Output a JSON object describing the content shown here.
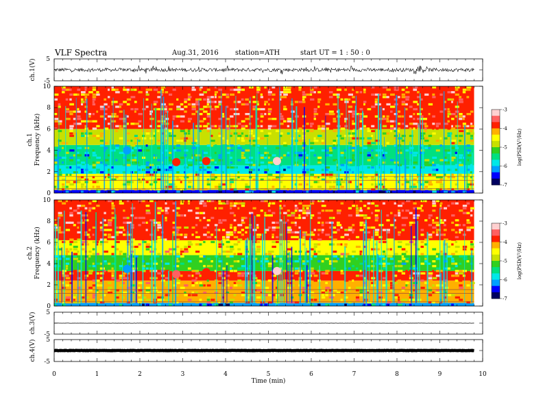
{
  "header": {
    "title": "VLF  Spectra",
    "date": "Aug.31, 2016",
    "station": "station=ATH",
    "start": "start  UT =   1 : 50 : 0"
  },
  "chart_data": [
    {
      "type": "line",
      "panel": "ch1-waveform",
      "ylabel": "ch.1(V)",
      "ylim": [
        -5,
        5
      ],
      "yticks": [
        "5",
        "-5"
      ],
      "xlim": [
        0,
        10
      ],
      "style": "noisy black trace centred near 0 V, amplitude mostly within ±1.5 V"
    },
    {
      "type": "heatmap",
      "panel": "ch1-spectrogram",
      "ylabel": "ch.1\nFrequency (kHz)",
      "ylabel_line1": "ch.1",
      "ylabel_line2": "Frequency (kHz)",
      "ylim": [
        0,
        10
      ],
      "yticks": [
        "0",
        "2",
        "4",
        "6",
        "8",
        "10"
      ],
      "xlim": [
        0,
        10
      ],
      "data_end_min": 9.8,
      "colorbar": {
        "label": "log(PSD(V²/Hz)",
        "ticks": [
          "-3",
          "-4",
          "-5",
          "-6",
          "-7"
        ],
        "range": [
          -7,
          -3
        ]
      },
      "bands_logpsd": [
        {
          "fmin": 0.0,
          "fmax": 0.3,
          "level": -6.5
        },
        {
          "fmin": 0.3,
          "fmax": 1.8,
          "level": -4.6
        },
        {
          "fmin": 1.8,
          "fmax": 2.6,
          "level": -5.9
        },
        {
          "fmin": 2.6,
          "fmax": 3.3,
          "level": -5.4
        },
        {
          "fmin": 3.3,
          "fmax": 4.5,
          "level": -5.6
        },
        {
          "fmin": 4.5,
          "fmax": 6.0,
          "level": -4.7
        },
        {
          "fmin": 6.0,
          "fmax": 10.0,
          "level": -3.9
        }
      ],
      "events": [
        {
          "t": 1.7,
          "f": 4.0,
          "level": -6.2
        },
        {
          "t": 2.85,
          "f": 2.9,
          "level": -3.8
        },
        {
          "t": 3.55,
          "f": 3.0,
          "level": -4.0
        },
        {
          "t": 5.2,
          "f": 3.0,
          "level": -3.3
        }
      ]
    },
    {
      "type": "heatmap",
      "panel": "ch2-spectrogram",
      "ylabel": "ch.2\nFrequency (kHz)",
      "ylabel_line1": "ch.2",
      "ylabel_line2": "Frequency (kHz)",
      "ylim": [
        0,
        10
      ],
      "yticks": [
        "0",
        "2",
        "4",
        "6",
        "8",
        "10"
      ],
      "xlim": [
        0,
        10
      ],
      "data_end_min": 9.8,
      "colorbar": {
        "label": "log(PSD(V²/Hz)",
        "ticks": [
          "-3",
          "-4",
          "-5",
          "-6",
          "-7"
        ],
        "range": [
          -7,
          -3
        ]
      },
      "bands_logpsd": [
        {
          "fmin": 0.0,
          "fmax": 0.3,
          "level": -6.2
        },
        {
          "fmin": 0.3,
          "fmax": 2.4,
          "level": -4.3
        },
        {
          "fmin": 2.4,
          "fmax": 3.3,
          "level": -4.0
        },
        {
          "fmin": 3.3,
          "fmax": 4.8,
          "level": -5.3
        },
        {
          "fmin": 4.8,
          "fmax": 6.2,
          "level": -4.4
        },
        {
          "fmin": 6.2,
          "fmax": 10.0,
          "level": -3.9
        }
      ],
      "events": [
        {
          "t": 1.7,
          "f": 3.5,
          "level": -6.3
        },
        {
          "t": 2.85,
          "f": 3.0,
          "level": -3.6
        },
        {
          "t": 3.55,
          "f": 3.2,
          "level": -3.8
        },
        {
          "t": 5.2,
          "f": 3.3,
          "level": -3.2
        }
      ]
    },
    {
      "type": "line",
      "panel": "ch3-waveform",
      "ylabel": "ch.3(V)",
      "ylim": [
        -5,
        5
      ],
      "yticks": [
        "5",
        "-5"
      ],
      "xlim": [
        0,
        10
      ],
      "style": "nearly flat trace near 0 V"
    },
    {
      "type": "line",
      "panel": "ch4-waveform",
      "ylabel": "ch.4(V)",
      "ylim": [
        -5,
        5
      ],
      "yticks": [
        "5",
        "-5"
      ],
      "xlabel": "Time  (min)",
      "xlim": [
        0,
        10
      ],
      "xticks": [
        "0",
        "1",
        "2",
        "3",
        "4",
        "5",
        "6",
        "7",
        "8",
        "9",
        "10"
      ],
      "style": "thick flat trace near 0 V"
    }
  ],
  "colors": {
    "scale": [
      "#000060",
      "#0000ff",
      "#00a0ff",
      "#00e8e8",
      "#00e080",
      "#30d020",
      "#c8e000",
      "#ffff00",
      "#ffb000",
      "#ff2000",
      "#ff6060",
      "#ffd0d0"
    ]
  }
}
